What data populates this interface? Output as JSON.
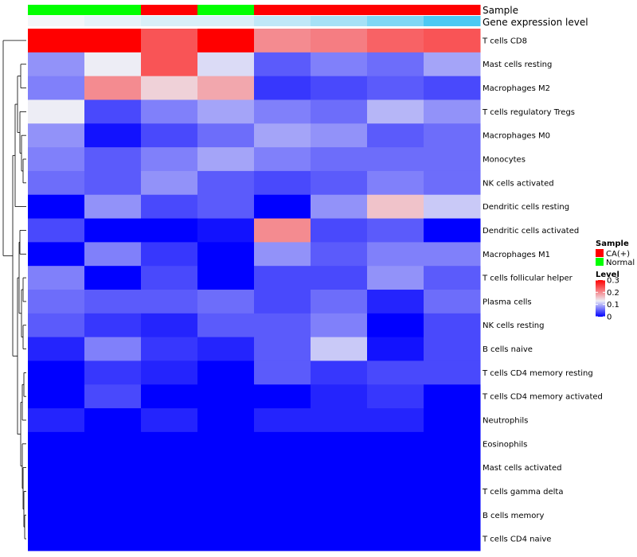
{
  "chart_data": {
    "type": "heatmap",
    "title": "",
    "annotation_tracks": [
      "Sample",
      "Gene expression level"
    ],
    "sample_annotation": [
      "Normal",
      "Normal",
      "CA(+)",
      "Normal",
      "CA(+)",
      "CA(+)",
      "CA(+)",
      "CA(+)"
    ],
    "expression_annotation": [
      0.0,
      0.05,
      0.1,
      0.1,
      0.2,
      0.3,
      0.45,
      0.65
    ],
    "rows": [
      "T cells CD8",
      "Mast cells resting",
      "Macrophages M2",
      "T cells regulatory  Tregs",
      "Macrophages M0",
      "Monocytes",
      "NK cells activated",
      "Dendritic cells resting",
      "Dendritic cells activated",
      "Macrophages M1",
      "T cells follicular helper",
      "Plasma cells",
      "NK cells resting",
      "B cells naive",
      "T cells CD4 memory resting",
      "T cells CD4 memory activated",
      "Neutrophils",
      "Eosinophils",
      "Mast cells activated",
      "T cells gamma delta",
      "B cells memory",
      "T cells CD4 naive"
    ],
    "values": [
      [
        0.31,
        0.31,
        0.24,
        0.31,
        0.2,
        0.21,
        0.23,
        0.24
      ],
      [
        0.08,
        0.13,
        0.24,
        0.12,
        0.05,
        0.07,
        0.06,
        0.09
      ],
      [
        0.07,
        0.2,
        0.15,
        0.18,
        0.03,
        0.04,
        0.05,
        0.04
      ],
      [
        0.13,
        0.04,
        0.07,
        0.09,
        0.07,
        0.06,
        0.1,
        0.08
      ],
      [
        0.08,
        0.01,
        0.04,
        0.06,
        0.09,
        0.08,
        0.05,
        0.06
      ],
      [
        0.07,
        0.05,
        0.07,
        0.09,
        0.07,
        0.06,
        0.06,
        0.06
      ],
      [
        0.06,
        0.05,
        0.08,
        0.05,
        0.04,
        0.05,
        0.07,
        0.06
      ],
      [
        0.0,
        0.08,
        0.04,
        0.05,
        0.0,
        0.08,
        0.16,
        0.11
      ],
      [
        0.04,
        0.0,
        0.0,
        0.01,
        0.2,
        0.04,
        0.05,
        0.0
      ],
      [
        0.0,
        0.07,
        0.03,
        0.0,
        0.08,
        0.05,
        0.07,
        0.07
      ],
      [
        0.07,
        0.0,
        0.04,
        0.0,
        0.04,
        0.04,
        0.08,
        0.05
      ],
      [
        0.06,
        0.05,
        0.05,
        0.06,
        0.04,
        0.06,
        0.02,
        0.06
      ],
      [
        0.05,
        0.03,
        0.02,
        0.05,
        0.05,
        0.07,
        0.0,
        0.04
      ],
      [
        0.02,
        0.07,
        0.03,
        0.02,
        0.05,
        0.11,
        0.01,
        0.04
      ],
      [
        0.0,
        0.03,
        0.02,
        0.0,
        0.05,
        0.03,
        0.04,
        0.04
      ],
      [
        0.0,
        0.04,
        0.0,
        0.0,
        0.0,
        0.02,
        0.03,
        0.0
      ],
      [
        0.02,
        0.0,
        0.02,
        0.0,
        0.02,
        0.02,
        0.02,
        0.0
      ],
      [
        0.0,
        0.0,
        0.0,
        0.0,
        0.0,
        0.0,
        0.0,
        0.0
      ],
      [
        0.0,
        0.0,
        0.0,
        0.0,
        0.0,
        0.0,
        0.0,
        0.0
      ],
      [
        0.0,
        0.0,
        0.0,
        0.0,
        0.0,
        0.0,
        0.0,
        0.0
      ],
      [
        0.0,
        0.0,
        0.0,
        0.0,
        0.0,
        0.0,
        0.0,
        0.0
      ],
      [
        0.0,
        0.0,
        0.0,
        0.0,
        0.0,
        0.0,
        0.0,
        0.0
      ]
    ],
    "legend": {
      "sample_title": "Sample",
      "sample_entries": [
        {
          "label": "CA(+)",
          "color": "#ff0000"
        },
        {
          "label": "Normal",
          "color": "#00ff00"
        }
      ],
      "level_title": "Level",
      "level_ticks": [
        0.3,
        0.2,
        0.1,
        0
      ],
      "level_tick_labels": [
        "0.3",
        "0.2",
        "0.1",
        "0"
      ],
      "placement": "right"
    },
    "color_scale": {
      "low": "#0000ff",
      "mid": "#ededf5",
      "high": "#ff0000",
      "domain": [
        0,
        0.3
      ],
      "mid_value": 0.13
    },
    "expression_colors": {
      "low": "#f3f6f9",
      "high": "#4cc9f3"
    },
    "row_dendrogram": "left"
  }
}
